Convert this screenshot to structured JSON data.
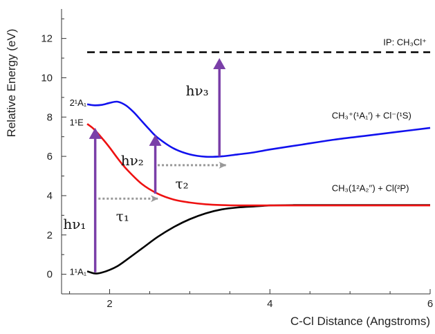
{
  "chart_data": {
    "type": "line",
    "xlabel": "C-Cl Distance (Angstroms)",
    "ylabel": "Relative Energy (eV)",
    "xlim": [
      1.4,
      6.0
    ],
    "ylim": [
      -1.0,
      13.5
    ],
    "x_ticks": [
      2,
      4,
      6
    ],
    "y_ticks": [
      0,
      2,
      4,
      6,
      8,
      10,
      12
    ],
    "grid": false,
    "colors": {
      "ground": "#000000",
      "first_excited": "#ee1111",
      "second_excited": "#1111ee",
      "arrow": "#7a3fa8",
      "dotted": "#999999",
      "dashed": "#000000"
    },
    "series": [
      {
        "color": "black",
        "x": [
          1.72,
          1.8,
          1.85,
          1.9,
          2.0,
          2.1,
          2.2,
          2.4,
          2.6,
          2.8,
          3.0,
          3.2,
          3.4,
          3.6,
          3.8,
          4.0,
          4.3,
          4.6,
          5.0,
          5.5,
          6.0
        ],
        "y": [
          0.15,
          0.05,
          0.04,
          0.08,
          0.22,
          0.42,
          0.7,
          1.3,
          1.9,
          2.4,
          2.8,
          3.1,
          3.3,
          3.4,
          3.45,
          3.5,
          3.52,
          3.52,
          3.52,
          3.52,
          3.52
        ]
      },
      {
        "color": "red",
        "x": [
          1.72,
          1.8,
          1.9,
          2.0,
          2.1,
          2.2,
          2.4,
          2.6,
          2.8,
          3.0,
          3.2,
          3.4,
          3.6,
          4.0,
          4.5,
          5.0,
          6.0
        ],
        "y": [
          7.65,
          7.4,
          6.95,
          6.45,
          5.9,
          5.4,
          4.6,
          4.1,
          3.8,
          3.65,
          3.56,
          3.52,
          3.5,
          3.5,
          3.5,
          3.5,
          3.5
        ]
      },
      {
        "color": "blue",
        "x": [
          1.72,
          1.8,
          1.9,
          2.0,
          2.1,
          2.2,
          2.3,
          2.4,
          2.5,
          2.6,
          2.8,
          3.0,
          3.2,
          3.4,
          3.6,
          3.8,
          4.0,
          4.4,
          4.8,
          5.2,
          5.6,
          6.0
        ],
        "y": [
          8.65,
          8.6,
          8.62,
          8.72,
          8.78,
          8.6,
          8.25,
          7.8,
          7.35,
          6.95,
          6.4,
          6.1,
          5.98,
          6.0,
          6.1,
          6.2,
          6.35,
          6.6,
          6.85,
          7.05,
          7.25,
          7.45
        ]
      }
    ],
    "dashed_line": {
      "y": 11.3,
      "label": "IP: CH₃Cl⁺"
    },
    "state_labels": [
      {
        "text": "2¹A₁",
        "x": 1.5,
        "y": 8.75
      },
      {
        "text": "1¹E",
        "x": 1.5,
        "y": 7.75
      },
      {
        "text": "1¹A₁",
        "x": 1.5,
        "y": 0.15
      }
    ],
    "asymptote_labels": [
      {
        "text": "CH₃⁺(¹A₁′) + Cl⁻(¹S)",
        "x": 4.6,
        "y": 8.1
      },
      {
        "text": "CH₃(1²A₂′′) + Cl(²P)",
        "x": 4.6,
        "y": 4.4
      }
    ],
    "transitions": [
      {
        "label": "hν₁",
        "x": 1.82,
        "y_from": 0.1,
        "y_to": 7.45,
        "label_x": 1.42,
        "label_y": 2.3
      },
      {
        "label": "hν₂",
        "x": 2.57,
        "y_from": 4.1,
        "y_to": 7.1,
        "label_x": 2.14,
        "label_y": 5.55
      },
      {
        "label": "hν₃",
        "x": 3.37,
        "y_from": 6.0,
        "y_to": 11.0,
        "label_x": 2.95,
        "label_y": 9.1
      }
    ],
    "relaxations": [
      {
        "label": "τ₁",
        "x_from": 1.86,
        "x_to": 2.6,
        "y": 3.85,
        "label_x": 2.08,
        "label_y": 3.0
      },
      {
        "label": "τ₂",
        "x_from": 2.6,
        "x_to": 3.45,
        "y": 5.55,
        "label_x": 2.82,
        "label_y": 4.65
      }
    ]
  }
}
